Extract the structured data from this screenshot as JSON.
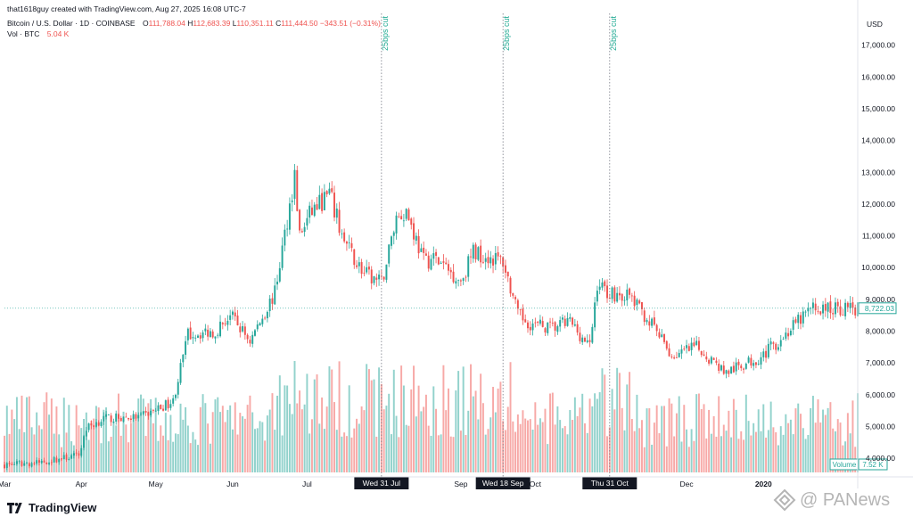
{
  "header": {
    "creator_line": "that1618guy created with TradingView.com, Aug 27, 2025 16:08 UTC-7",
    "symbol": "Bitcoin / U.S. Dollar · 1D · COINBASE",
    "o_label": "O",
    "o_value": "111,788.04",
    "h_label": "H",
    "h_value": "112,683.39",
    "l_label": "L",
    "l_value": "110,351.11",
    "c_label": "C",
    "c_value": "111,444.50",
    "change": "−343.51 (−0.31%)",
    "vol_label": "Vol · BTC",
    "vol_value": "5.04 K"
  },
  "logo": {
    "text": "TradingView"
  },
  "watermark": {
    "text": "PANews"
  },
  "chart_data": {
    "type": "candlestick",
    "currency_label": "USD",
    "y_ticks": [
      "17,000.00",
      "16,000.00",
      "15,000.00",
      "14,000.00",
      "13,000.00",
      "12,000.00",
      "11,000.00",
      "10,000.00",
      "9,000.00",
      "8,000.00",
      "7,000.00",
      "6,000.00",
      "5,000.00",
      "4,000.00"
    ],
    "y_tick_values": [
      17000,
      16000,
      15000,
      14000,
      13000,
      12000,
      11000,
      10000,
      9000,
      8000,
      7000,
      6000,
      5000,
      4000
    ],
    "ylim": [
      3500,
      18000
    ],
    "price_scale": "linear",
    "x_ticks": [
      "Mar",
      "Apr",
      "May",
      "Jun",
      "Jul",
      "Sep",
      "Oct",
      "Dec",
      "2020"
    ],
    "x_range": [
      "2019-03-01",
      "2020-02-08"
    ],
    "x_tick_dates": [
      "2019-03-01",
      "2019-04-01",
      "2019-05-01",
      "2019-06-01",
      "2019-07-01",
      "2019-09-01",
      "2019-10-01",
      "2019-12-01",
      "2020-01-01"
    ],
    "bold_tick": "2020",
    "marker_dates": [
      "Wed 31 Jul",
      "Wed 18 Sep",
      "Thu 31 Oct"
    ],
    "markers": [
      {
        "date": "2019-07-31",
        "date_label": "Wed 31 Jul",
        "annotation": "25bps cut"
      },
      {
        "date": "2019-09-18",
        "date_label": "Wed 18 Sep",
        "annotation": "25bps cut"
      },
      {
        "date": "2019-10-31",
        "date_label": "Thu 31 Oct",
        "annotation": "25bps cut"
      }
    ],
    "last_price": {
      "value": 8722.03,
      "label": "8,722.03"
    },
    "last_volume": {
      "label": "Volume",
      "value": "7.52 K"
    },
    "anchors": [
      [
        "2019-03-01",
        3800
      ],
      [
        "2019-03-15",
        3860
      ],
      [
        "2019-03-31",
        4100
      ],
      [
        "2019-04-03",
        4950
      ],
      [
        "2019-04-10",
        5250
      ],
      [
        "2019-04-25",
        5300
      ],
      [
        "2019-05-08",
        5800
      ],
      [
        "2019-05-14",
        7900
      ],
      [
        "2019-05-25",
        8000
      ],
      [
        "2019-05-31",
        8500
      ],
      [
        "2019-06-08",
        7700
      ],
      [
        "2019-06-18",
        9200
      ],
      [
        "2019-06-26",
        12900
      ],
      [
        "2019-06-28",
        11000
      ],
      [
        "2019-07-03",
        11800
      ],
      [
        "2019-07-10",
        12300
      ],
      [
        "2019-07-16",
        10800
      ],
      [
        "2019-07-24",
        9800
      ],
      [
        "2019-07-31",
        9500
      ],
      [
        "2019-08-06",
        11600
      ],
      [
        "2019-08-10",
        11800
      ],
      [
        "2019-08-17",
        10200
      ],
      [
        "2019-08-21",
        10300
      ],
      [
        "2019-09-01",
        9600
      ],
      [
        "2019-09-06",
        10500
      ],
      [
        "2019-09-18",
        10200
      ],
      [
        "2019-09-24",
        8500
      ],
      [
        "2019-09-30",
        8200
      ],
      [
        "2019-10-08",
        8100
      ],
      [
        "2019-10-15",
        8300
      ],
      [
        "2019-10-23",
        7500
      ],
      [
        "2019-10-26",
        9500
      ],
      [
        "2019-10-31",
        9200
      ],
      [
        "2019-11-08",
        9100
      ],
      [
        "2019-11-18",
        8100
      ],
      [
        "2019-11-25",
        7200
      ],
      [
        "2019-12-05",
        7500
      ],
      [
        "2019-12-17",
        6700
      ],
      [
        "2019-12-31",
        7200
      ],
      [
        "2020-01-10",
        7900
      ],
      [
        "2020-01-20",
        8700
      ],
      [
        "2020-02-08",
        8722
      ]
    ]
  }
}
